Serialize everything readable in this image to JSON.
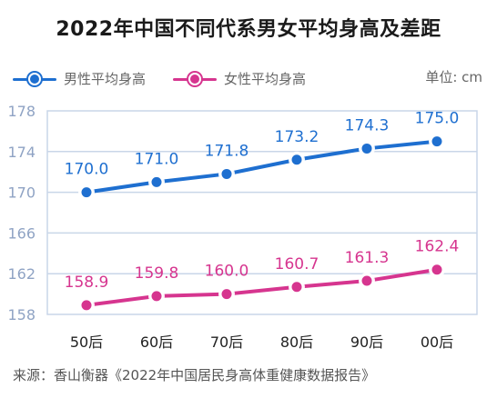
{
  "chart_data": {
    "type": "line",
    "title": "2022年中国不同代系男女平均身高及差距",
    "unit_label": "单位: cm",
    "categories": [
      "50后",
      "60后",
      "70后",
      "80后",
      "90后",
      "00后"
    ],
    "series": [
      {
        "name": "男性平均身高",
        "color": "#1e6fd0",
        "values": [
          170.0,
          171.0,
          171.8,
          173.2,
          174.3,
          175.0
        ]
      },
      {
        "name": "女性平均身高",
        "color": "#d6358f",
        "values": [
          158.9,
          159.8,
          160.0,
          160.7,
          161.3,
          162.4
        ]
      }
    ],
    "ylim": [
      158,
      178
    ],
    "yticks": [
      158,
      162,
      166,
      170,
      174,
      178
    ],
    "grid": true,
    "legend_position": "top-left"
  },
  "source": "来源：香山衡器《2022年中国居民身高体重健康数据报告》"
}
